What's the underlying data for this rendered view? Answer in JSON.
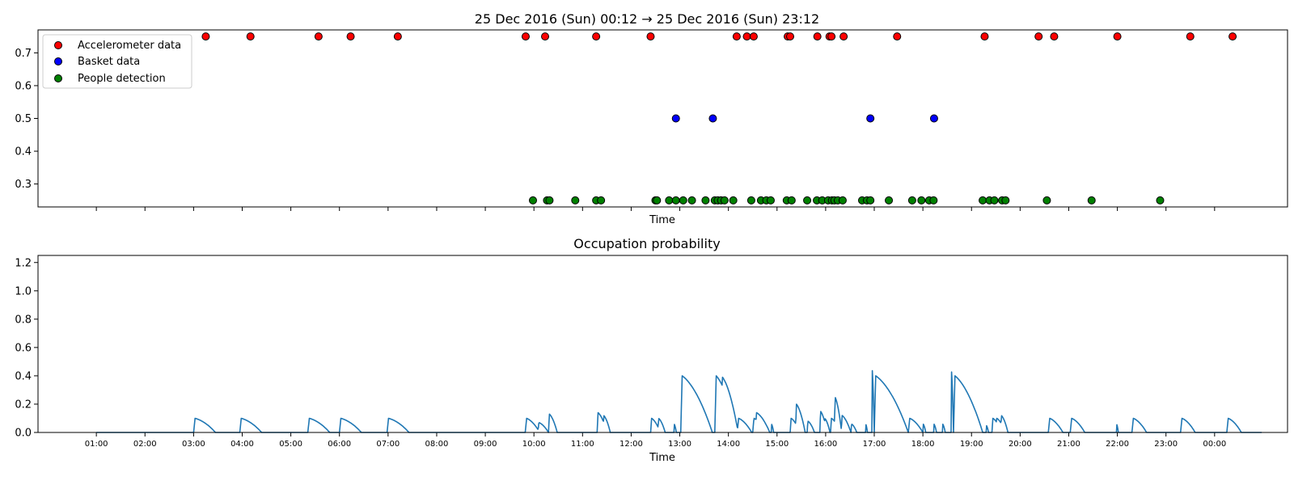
{
  "chart_data": [
    {
      "type": "scatter",
      "title": "25 Dec 2016 (Sun) 00:12 → 25 Dec 2016 (Sun) 23:12",
      "xlabel": "Time",
      "ylabel": "",
      "xlim_hours": [
        -0.2,
        25.5
      ],
      "ylim": [
        0.23,
        0.77
      ],
      "yticks": [
        0.3,
        0.4,
        0.5,
        0.6,
        0.7
      ],
      "x_tick_labels_shown": false,
      "grid": false,
      "legend_position": "upper-left",
      "series": [
        {
          "name": "Accelerometer data",
          "color": "#ff0000",
          "y_value": 0.75,
          "x_hours": [
            3.25,
            4.17,
            5.57,
            6.23,
            7.2,
            9.83,
            10.23,
            11.28,
            12.4,
            14.17,
            14.38,
            14.52,
            15.22,
            15.27,
            15.83,
            16.08,
            16.12,
            16.37,
            17.47,
            19.27,
            20.38,
            20.7,
            22.0,
            23.5,
            24.37
          ]
        },
        {
          "name": "Basket data",
          "color": "#0000ff",
          "y_value": 0.5,
          "x_hours": [
            12.92,
            13.68,
            16.92,
            18.23
          ]
        },
        {
          "name": "People detection",
          "color": "#008000",
          "y_value": 0.25,
          "x_hours": [
            9.98,
            10.27,
            10.32,
            10.85,
            11.28,
            11.38,
            12.5,
            12.53,
            12.78,
            12.92,
            13.07,
            13.25,
            13.53,
            13.72,
            13.78,
            13.85,
            13.92,
            14.1,
            14.47,
            14.67,
            14.78,
            14.87,
            15.2,
            15.3,
            15.62,
            15.82,
            15.93,
            16.05,
            16.13,
            16.18,
            16.25,
            16.35,
            16.75,
            16.85,
            16.92,
            17.3,
            17.78,
            17.97,
            18.13,
            18.22,
            19.23,
            19.37,
            19.47,
            19.63,
            19.7,
            20.55,
            21.47,
            22.88
          ]
        }
      ]
    },
    {
      "type": "line",
      "title": "Occupation probability",
      "xlabel": "Time",
      "ylabel": "",
      "xlim_hours": [
        -0.2,
        25.5
      ],
      "ylim": [
        0,
        1.25
      ],
      "yticks": [
        0.0,
        0.2,
        0.4,
        0.6,
        0.8,
        1.0,
        1.2
      ],
      "grid": false,
      "line_color": "#1f77b4",
      "x_tick_hours": [
        1,
        2,
        3,
        4,
        5,
        6,
        7,
        8,
        9,
        10,
        11,
        12,
        13,
        14,
        15,
        16,
        17,
        18,
        19,
        20,
        21,
        22,
        23,
        24
      ],
      "x_tick_labels": [
        "01:00",
        "02:00",
        "03:00",
        "04:00",
        "05:00",
        "06:00",
        "07:00",
        "08:00",
        "09:00",
        "10:00",
        "11:00",
        "12:00",
        "13:00",
        "14:00",
        "15:00",
        "16:00",
        "17:00",
        "18:00",
        "19:00",
        "20:00",
        "21:00",
        "22:00",
        "23:00",
        "00:00"
      ],
      "series_x_range_hours": [
        1.0,
        24.97
      ],
      "peaks": [
        {
          "start": 3.0,
          "peak": 0.1,
          "dur": 0.45
        },
        {
          "start": 3.95,
          "peak": 0.1,
          "dur": 0.45
        },
        {
          "start": 5.35,
          "peak": 0.1,
          "dur": 0.45
        },
        {
          "start": 6.0,
          "peak": 0.1,
          "dur": 0.45
        },
        {
          "start": 6.98,
          "peak": 0.1,
          "dur": 0.45
        },
        {
          "start": 9.82,
          "peak": 0.1,
          "dur": 0.3
        },
        {
          "start": 10.08,
          "peak": 0.07,
          "dur": 0.22
        },
        {
          "start": 10.3,
          "peak": 0.13,
          "dur": 0.18
        },
        {
          "start": 11.3,
          "peak": 0.14,
          "dur": 0.2
        },
        {
          "start": 11.42,
          "peak": 0.12,
          "dur": 0.15
        },
        {
          "start": 12.4,
          "peak": 0.1,
          "dur": 0.2
        },
        {
          "start": 12.55,
          "peak": 0.1,
          "dur": 0.15
        },
        {
          "start": 12.88,
          "peak": 0.06,
          "dur": 0.05
        },
        {
          "start": 13.02,
          "peak": 0.4,
          "dur": 0.65
        },
        {
          "start": 13.15,
          "peak": 0.35,
          "dur": 0.3
        },
        {
          "start": 13.72,
          "peak": 0.4,
          "dur": 0.45
        },
        {
          "start": 13.85,
          "peak": 0.39,
          "dur": 0.35
        },
        {
          "start": 14.18,
          "peak": 0.1,
          "dur": 0.3
        },
        {
          "start": 14.5,
          "peak": 0.1,
          "dur": 0.25
        },
        {
          "start": 14.55,
          "peak": 0.14,
          "dur": 0.3
        },
        {
          "start": 14.88,
          "peak": 0.06,
          "dur": 0.05
        },
        {
          "start": 15.27,
          "peak": 0.1,
          "dur": 0.2
        },
        {
          "start": 15.38,
          "peak": 0.2,
          "dur": 0.2
        },
        {
          "start": 15.62,
          "peak": 0.08,
          "dur": 0.15
        },
        {
          "start": 15.88,
          "peak": 0.15,
          "dur": 0.15
        },
        {
          "start": 15.97,
          "peak": 0.1,
          "dur": 0.12
        },
        {
          "start": 16.1,
          "peak": 0.1,
          "dur": 0.2
        },
        {
          "start": 16.18,
          "peak": 0.25,
          "dur": 0.15
        },
        {
          "start": 16.32,
          "peak": 0.12,
          "dur": 0.2
        },
        {
          "start": 16.52,
          "peak": 0.06,
          "dur": 0.12
        },
        {
          "start": 16.82,
          "peak": 0.06,
          "dur": 0.04
        },
        {
          "start": 16.95,
          "peak": 0.46,
          "dur": 0.05
        },
        {
          "start": 17.0,
          "peak": 0.4,
          "dur": 0.7
        },
        {
          "start": 17.7,
          "peak": 0.1,
          "dur": 0.3
        },
        {
          "start": 18.0,
          "peak": 0.06,
          "dur": 0.06
        },
        {
          "start": 18.22,
          "peak": 0.06,
          "dur": 0.06
        },
        {
          "start": 18.4,
          "peak": 0.06,
          "dur": 0.06
        },
        {
          "start": 18.58,
          "peak": 0.45,
          "dur": 0.05
        },
        {
          "start": 18.63,
          "peak": 0.4,
          "dur": 0.6
        },
        {
          "start": 19.3,
          "peak": 0.05,
          "dur": 0.05
        },
        {
          "start": 19.42,
          "peak": 0.1,
          "dur": 0.2
        },
        {
          "start": 19.5,
          "peak": 0.1,
          "dur": 0.2
        },
        {
          "start": 19.6,
          "peak": 0.12,
          "dur": 0.15
        },
        {
          "start": 20.58,
          "peak": 0.1,
          "dur": 0.3
        },
        {
          "start": 20.7,
          "peak": 0.06,
          "dur": 0.1
        },
        {
          "start": 21.03,
          "peak": 0.1,
          "dur": 0.3
        },
        {
          "start": 21.98,
          "peak": 0.06,
          "dur": 0.04
        },
        {
          "start": 22.3,
          "peak": 0.1,
          "dur": 0.3
        },
        {
          "start": 23.3,
          "peak": 0.1,
          "dur": 0.3
        },
        {
          "start": 24.25,
          "peak": 0.1,
          "dur": 0.3
        }
      ]
    }
  ]
}
